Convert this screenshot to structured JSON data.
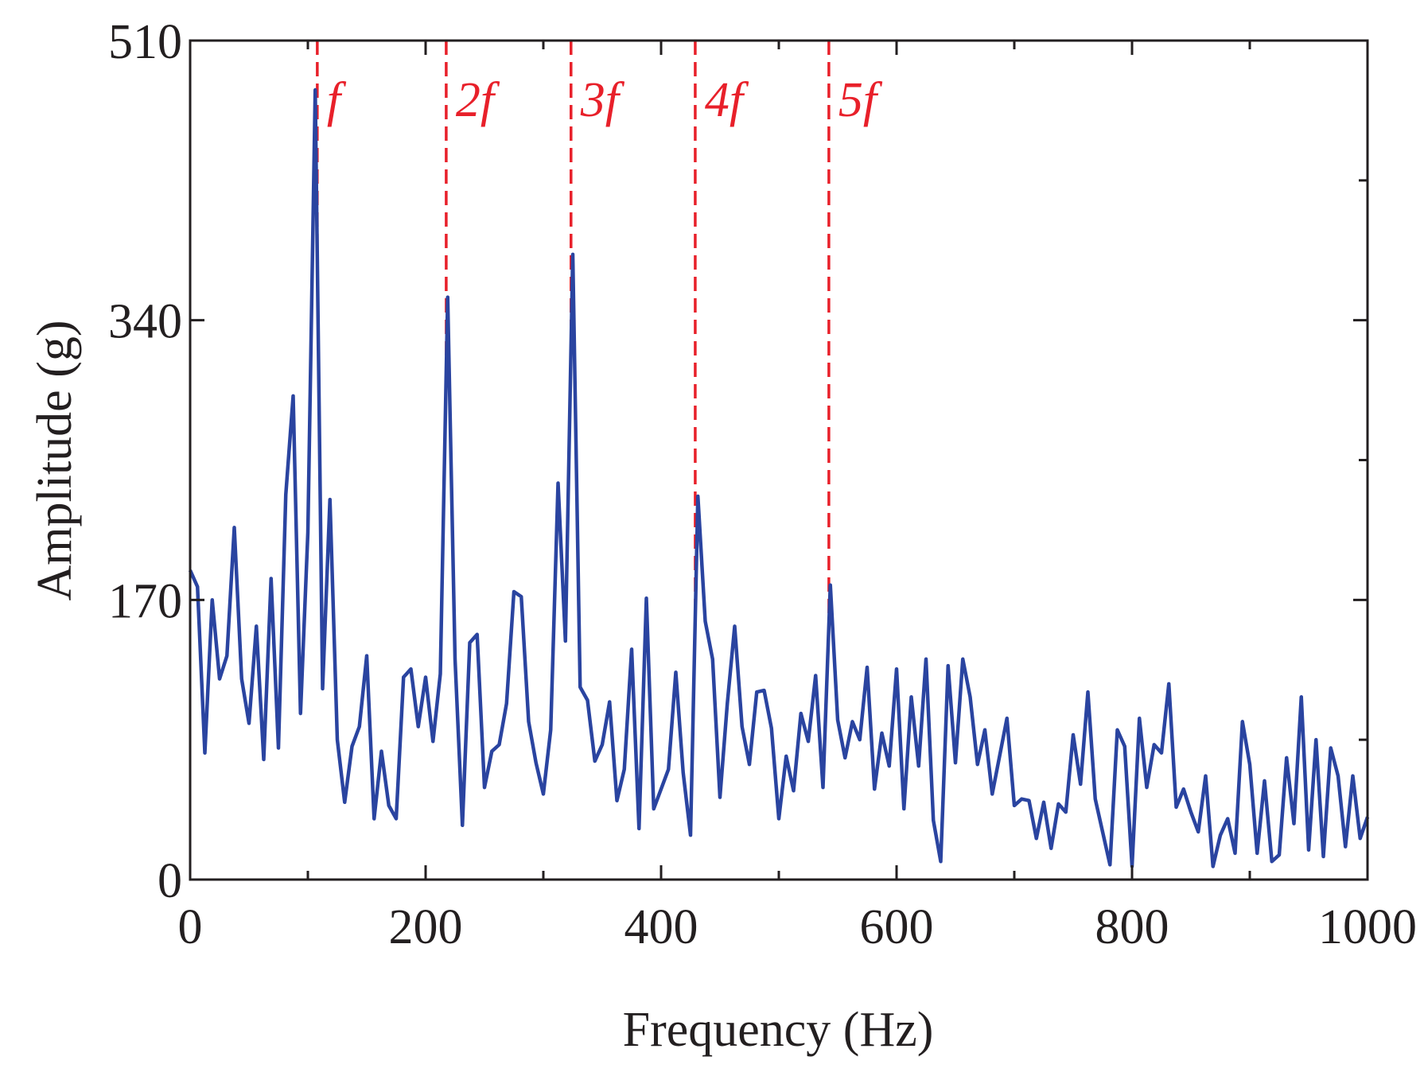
{
  "chart_data": {
    "type": "line",
    "xlabel": "Frequency (Hz)",
    "ylabel": "Amplitude (g)",
    "xlim": [
      0,
      1000
    ],
    "xticks": [
      0,
      200,
      400,
      600,
      800,
      1000
    ],
    "xminorticks": [
      100,
      300,
      500,
      700,
      900
    ],
    "ylim": [
      0,
      510
    ],
    "yticks": [
      0,
      170,
      340,
      510
    ],
    "yminorticks": [
      85,
      255,
      425
    ],
    "x": [
      0,
      6.25,
      12.5,
      18.75,
      25,
      31.25,
      37.5,
      43.75,
      50,
      56.25,
      62.5,
      68.75,
      75,
      81.25,
      87.5,
      93.75,
      100,
      106.25,
      112.5,
      118.75,
      125,
      131.25,
      137.5,
      143.75,
      150,
      156.25,
      162.5,
      168.75,
      175,
      181.25,
      187.5,
      193.75,
      200,
      206.25,
      212.5,
      218.75,
      225,
      231.25,
      237.5,
      243.75,
      250,
      256.25,
      262.5,
      268.75,
      275,
      281.25,
      287.5,
      293.75,
      300,
      306.25,
      312.5,
      318.75,
      325,
      331.25,
      337.5,
      343.75,
      350,
      356.25,
      362.5,
      368.75,
      375,
      381.25,
      387.5,
      393.75,
      400,
      406.25,
      412.5,
      418.75,
      425,
      431.25,
      437.5,
      443.75,
      450,
      456.25,
      462.5,
      468.75,
      475,
      481.25,
      487.5,
      493.75,
      500,
      506.25,
      512.5,
      518.75,
      525,
      531.25,
      537.5,
      543.75,
      550,
      556.25,
      562.5,
      568.75,
      575,
      581.25,
      587.5,
      593.75,
      600,
      606.25,
      612.5,
      618.75,
      625,
      631.25,
      637.5,
      643.75,
      650,
      656.25,
      662.5,
      668.75,
      675,
      681.25,
      687.5,
      693.75,
      700,
      706.25,
      712.5,
      718.75,
      725,
      731.25,
      737.5,
      743.75,
      750,
      756.25,
      762.5,
      768.75,
      775,
      781.25,
      787.5,
      793.75,
      800,
      806.25,
      812.5,
      818.75,
      825,
      831.25,
      837.5,
      843.75,
      850,
      856.25,
      862.5,
      868.75,
      875,
      881.25,
      887.5,
      893.75,
      900,
      906.25,
      912.5,
      918.75,
      925,
      931.25,
      937.5,
      943.75,
      950,
      956.25,
      962.5,
      968.75,
      975,
      981.25,
      987.5,
      993.75,
      1000
    ],
    "series": [
      {
        "color": "#2a44a0",
        "values": [
          188,
          178,
          77,
          170,
          122,
          136,
          214,
          122,
          95,
          154,
          73,
          183,
          80,
          234,
          294,
          101,
          211,
          480,
          116,
          231,
          85,
          47,
          81,
          93,
          136,
          37,
          78,
          45,
          37,
          123,
          128,
          93,
          123,
          84,
          125,
          354,
          134,
          33,
          144,
          149,
          56,
          78,
          82,
          107,
          175,
          172,
          96,
          71,
          52,
          91,
          241,
          145,
          380,
          117,
          109,
          72,
          82,
          108,
          48,
          67,
          140,
          31,
          171,
          43,
          55,
          67,
          126,
          65,
          27,
          233,
          157,
          134,
          50,
          107,
          154,
          93,
          70,
          114,
          115,
          92,
          37,
          75,
          54,
          101,
          84,
          124,
          56,
          179,
          97,
          74,
          96,
          85,
          129,
          55,
          89,
          69,
          128,
          43,
          111,
          69,
          134,
          36,
          11,
          130,
          71,
          134,
          111,
          70,
          91,
          52,
          75,
          98,
          45,
          49,
          48,
          25,
          47,
          19,
          46,
          41,
          88,
          58,
          114,
          49,
          29,
          9,
          91,
          81,
          8,
          98,
          56,
          82,
          77,
          119,
          44,
          55,
          41,
          29,
          63,
          8,
          27,
          37,
          16,
          96,
          70,
          16,
          60,
          11,
          15,
          74,
          34,
          111,
          18,
          85,
          14,
          80,
          63,
          20,
          63,
          25,
          38
        ]
      }
    ],
    "annotations": [
      {
        "label": "f",
        "x": 108,
        "color": "#e8202a"
      },
      {
        "label": "2f",
        "x": 217.5,
        "color": "#e8202a"
      },
      {
        "label": "3f",
        "x": 323.5,
        "color": "#e8202a"
      },
      {
        "label": "4f",
        "x": 429,
        "color": "#e8202a"
      },
      {
        "label": "5f",
        "x": 542.5,
        "color": "#e8202a"
      }
    ]
  }
}
